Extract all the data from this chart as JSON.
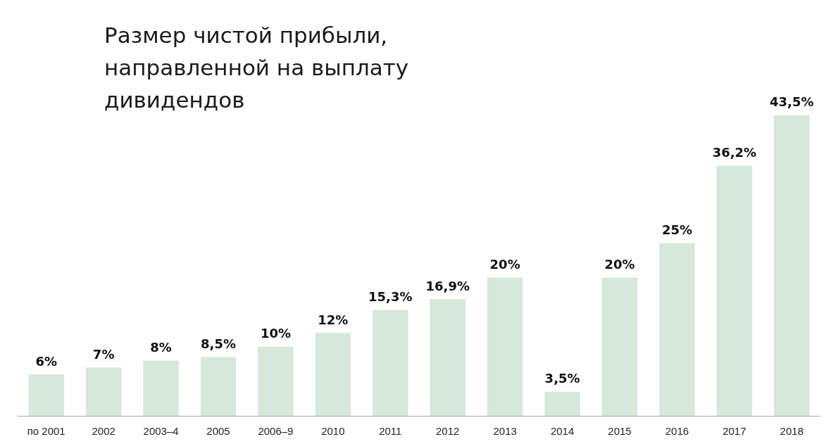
{
  "chart_data": {
    "type": "bar",
    "title": "Размер чистой прибыли, направленной на выплату дивидендов",
    "categories": [
      "по 2001",
      "2002",
      "2003–4",
      "2005",
      "2006–9",
      "2010",
      "2011",
      "2012",
      "2013",
      "2014",
      "2015",
      "2016",
      "2017",
      "2018"
    ],
    "values": [
      6,
      7,
      8,
      8.5,
      10,
      12,
      15.3,
      16.9,
      20,
      3.5,
      20,
      25,
      36.2,
      43.5
    ],
    "value_labels": [
      "6%",
      "7%",
      "8%",
      "8,5%",
      "10%",
      "12%",
      "15,3%",
      "16,9%",
      "20%",
      "3,5%",
      "20%",
      "25%",
      "36,2%",
      "43,5%"
    ],
    "color": "#d5e8da"
  }
}
